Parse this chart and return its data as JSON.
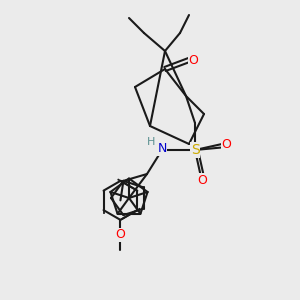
{
  "bg_color": "#ebebeb",
  "line_color": "#1a1a1a",
  "bond_width": 1.5,
  "figsize": [
    3.0,
    3.0
  ],
  "dpi": 100,
  "atoms": {
    "S": {
      "color": "#ccaa00",
      "fontsize": 9
    },
    "O": {
      "color": "#ff0000",
      "fontsize": 9
    },
    "N": {
      "color": "#0000cc",
      "fontsize": 9
    },
    "H": {
      "color": "#5a9090",
      "fontsize": 9
    },
    "C_ketone": {
      "color": "#ff0000",
      "fontsize": 8
    }
  }
}
